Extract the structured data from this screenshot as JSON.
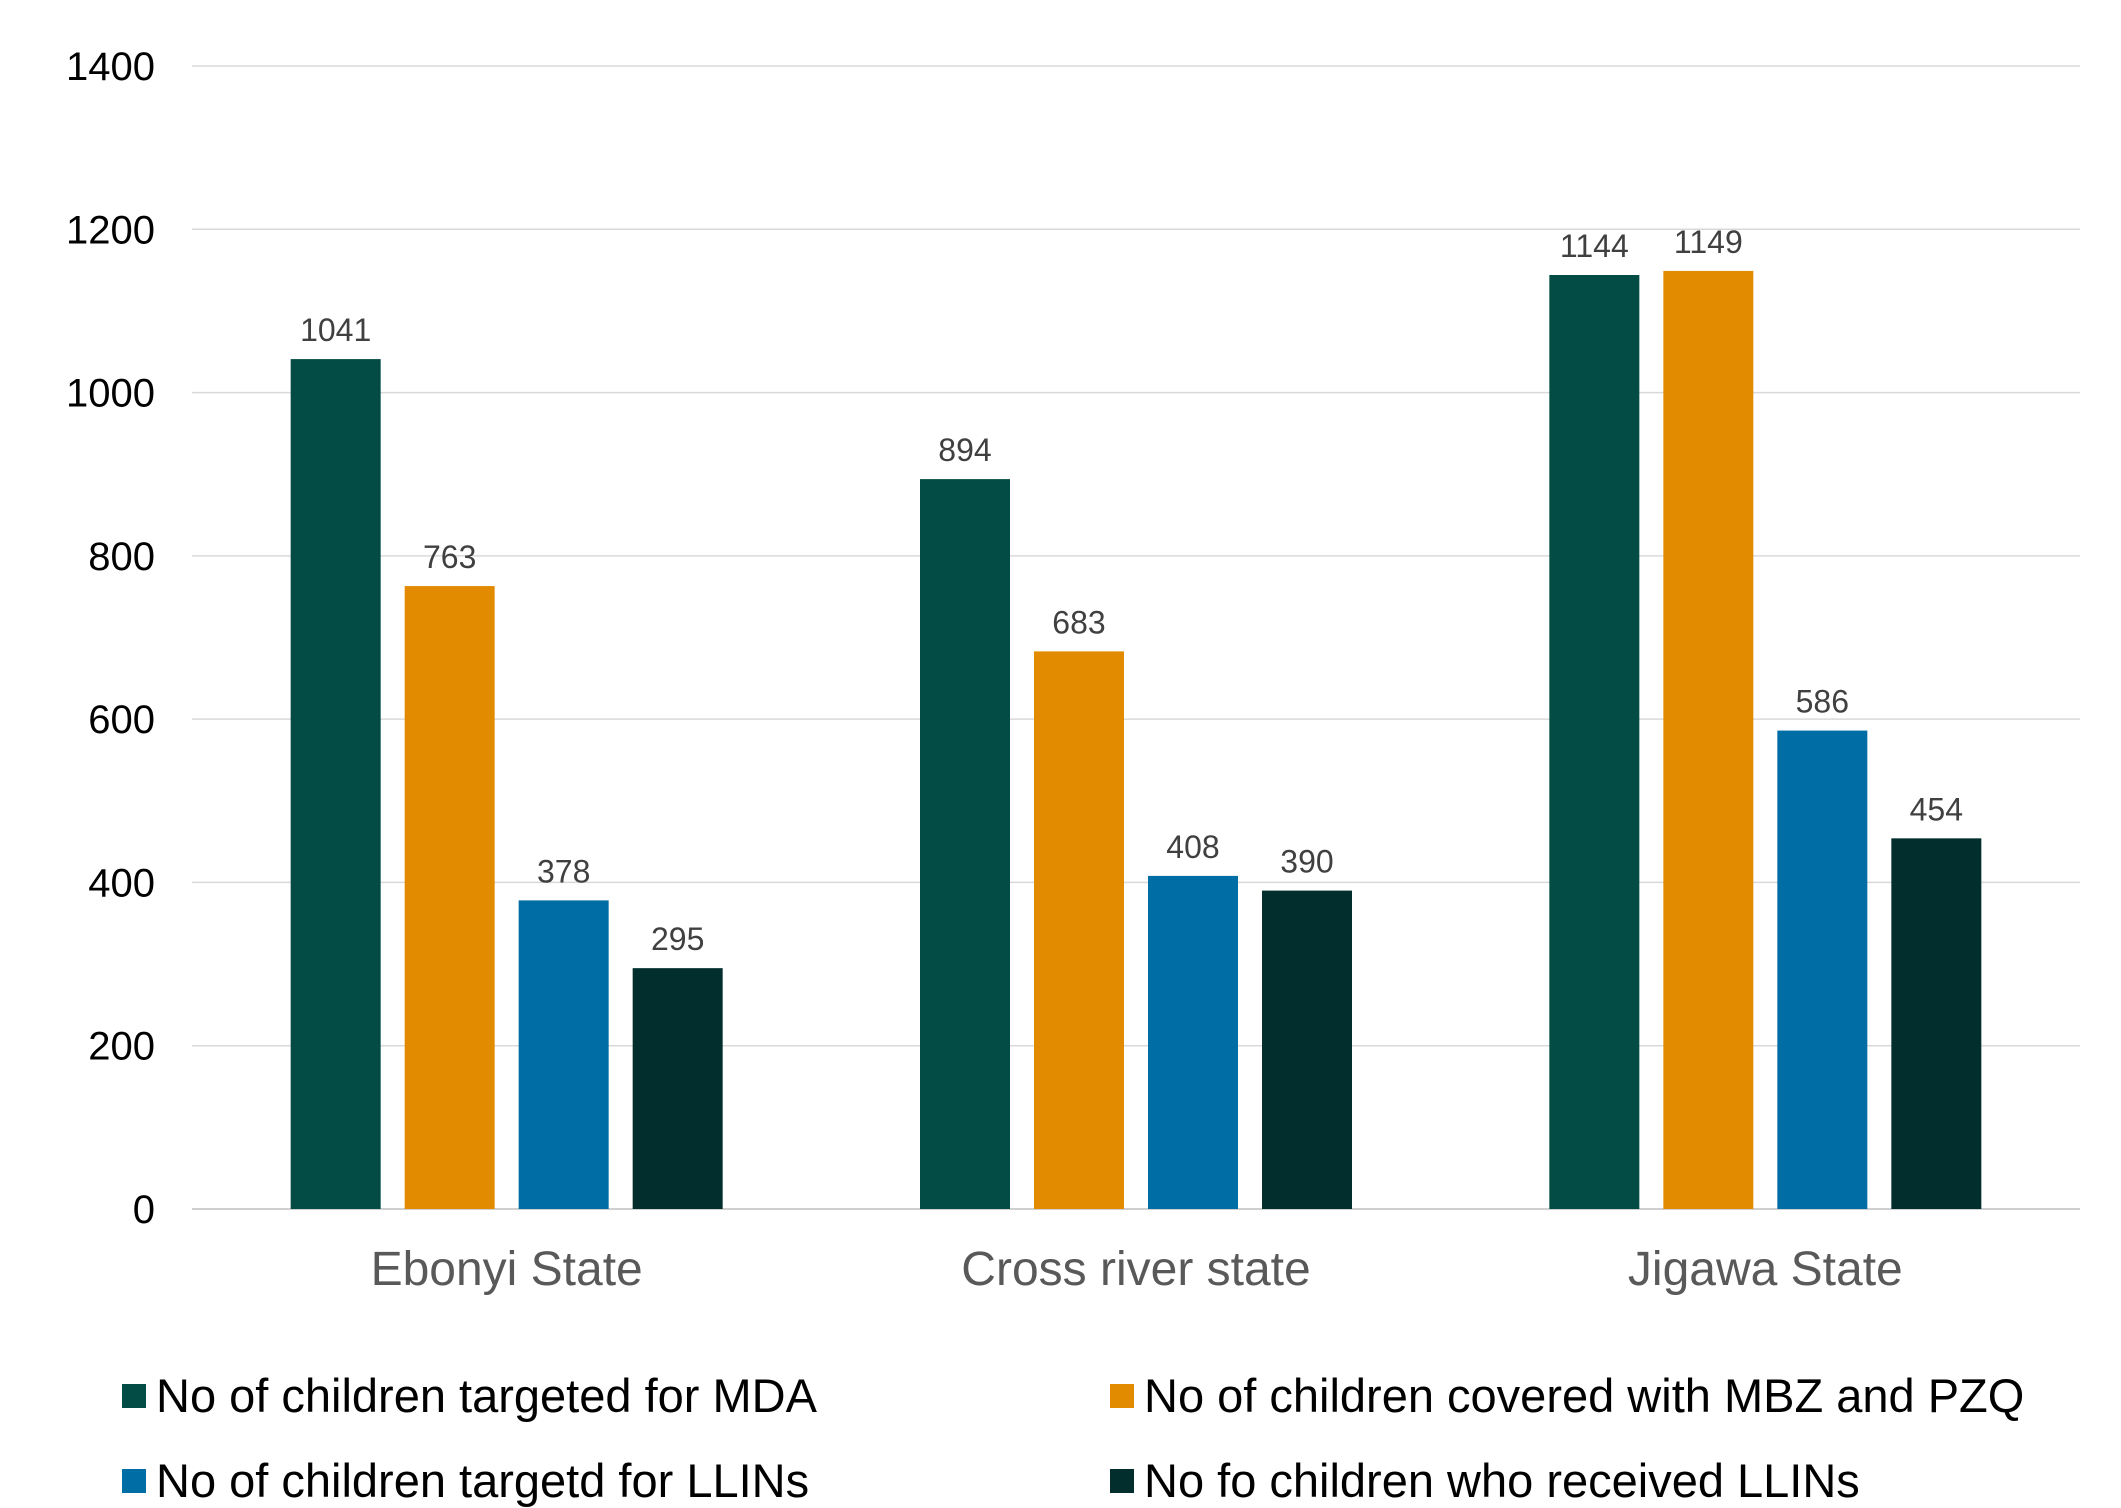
{
  "chart_data": {
    "type": "bar",
    "title": "",
    "xlabel": "",
    "ylabel": "",
    "categories": [
      "Ebonyi State",
      "Cross river state",
      "Jigawa State"
    ],
    "series": [
      {
        "name": "No of children targeted for MDA",
        "color": "#034b45",
        "values": [
          1041,
          894,
          1144
        ]
      },
      {
        "name": "No of children covered with MBZ and PZQ",
        "color": "#e38b00",
        "values": [
          763,
          683,
          1149
        ]
      },
      {
        "name": "No of children targetd for LLINs",
        "color": "#006ea5",
        "values": [
          378,
          408,
          586
        ]
      },
      {
        "name": "No fo children who received LLINs",
        "color": "#022f2e",
        "values": [
          295,
          390,
          454
        ]
      }
    ],
    "ylim": [
      0,
      1400
    ],
    "yticks": [
      0,
      200,
      400,
      600,
      800,
      1000,
      1200,
      1400
    ],
    "grid": true,
    "legend_position": "bottom",
    "data_labels": true
  }
}
